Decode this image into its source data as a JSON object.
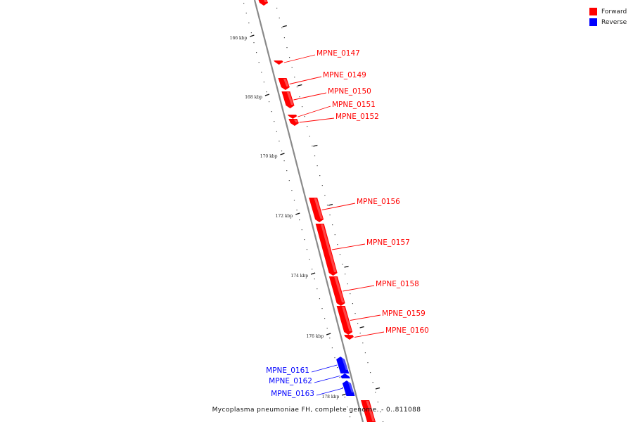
{
  "legend": {
    "forward_label": "Forward",
    "reverse_label": "Reverse",
    "forward_color": "#ff0000",
    "reverse_color": "#0000ff"
  },
  "caption": "Mycoplasma pneumoniae FH, complete genome. - 0..811088",
  "ticks": [
    "166 kbp",
    "168 kbp",
    "170 kbp",
    "172 kbp",
    "174 kbp",
    "176 kbp",
    "178 kbp"
  ],
  "genes": [
    {
      "name": "",
      "strand": "forward"
    },
    {
      "name": "MPNE_0147",
      "strand": "forward"
    },
    {
      "name": "MPNE_0149",
      "strand": "forward"
    },
    {
      "name": "MPNE_0150",
      "strand": "forward"
    },
    {
      "name": "MPNE_0151",
      "strand": "forward"
    },
    {
      "name": "MPNE_0152",
      "strand": "forward"
    },
    {
      "name": "MPNE_0156",
      "strand": "forward"
    },
    {
      "name": "MPNE_0157",
      "strand": "forward"
    },
    {
      "name": "MPNE_0158",
      "strand": "forward"
    },
    {
      "name": "MPNE_0159",
      "strand": "forward"
    },
    {
      "name": "MPNE_0160",
      "strand": "forward"
    },
    {
      "name": "MPNE_0161",
      "strand": "reverse"
    },
    {
      "name": "MPNE_0162",
      "strand": "reverse"
    },
    {
      "name": "MPNE_0163",
      "strand": "reverse"
    },
    {
      "name": "",
      "strand": "forward"
    }
  ]
}
